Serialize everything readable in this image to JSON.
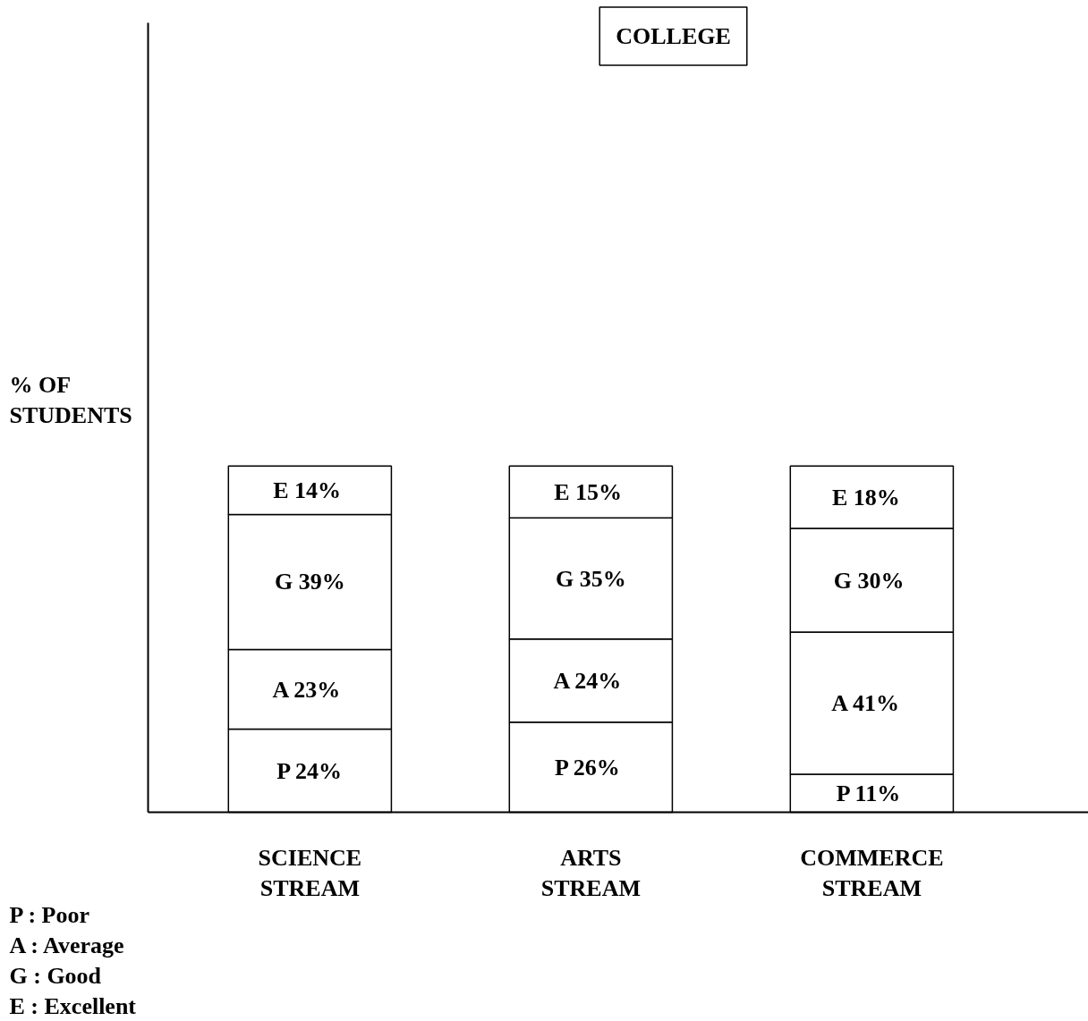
{
  "chart_data": {
    "type": "bar",
    "stacked": true,
    "title": "COLLEGE",
    "ylabel": "% OF STUDENTS",
    "categories": [
      "SCIENCE STREAM",
      "ARTS STREAM",
      "COMMERCE STREAM"
    ],
    "series": [
      {
        "color": "#ffffff",
        "values": [
          24,
          26,
          11
        ],
        "value_labels": [
          "P 24%",
          "P  26%",
          "P  11%"
        ]
      },
      {
        "color": "#ffffff",
        "values": [
          23,
          24,
          41
        ],
        "value_labels": [
          "A  23%",
          "A  24%",
          "A   41%"
        ]
      },
      {
        "color": "#ffffff",
        "values": [
          39,
          35,
          30
        ],
        "value_labels": [
          "G 39%",
          "G 35%",
          "G  30%"
        ]
      },
      {
        "color": "#ffffff",
        "values": [
          14,
          15,
          18
        ],
        "value_labels": [
          "E  14%",
          "E  15%",
          "E   18%"
        ]
      }
    ],
    "ylim": [
      0,
      228
    ],
    "tick_labels": "x",
    "grid": false,
    "annotations": [
      "P :   Poor",
      "A :  Average",
      "G :  Good",
      "E   :   Excellent"
    ]
  }
}
